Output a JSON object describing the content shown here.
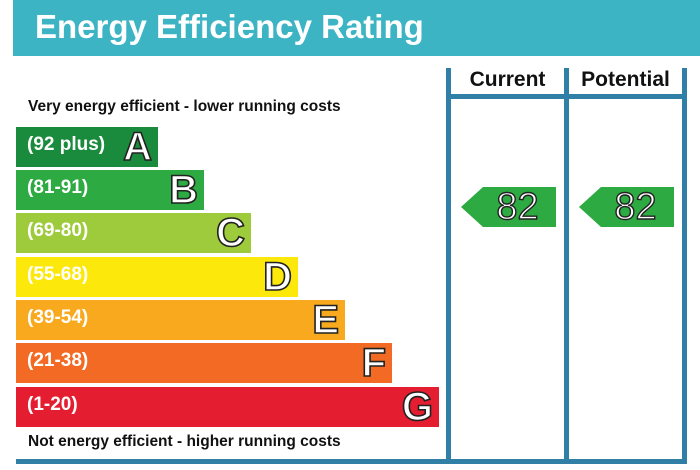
{
  "title": "Energy Efficiency Rating",
  "columns": {
    "current": "Current",
    "potential": "Potential"
  },
  "top_caption": "Very energy efficient - lower running costs",
  "bottom_caption": "Not energy efficient - higher running costs",
  "bands": [
    {
      "range": "(92 plus)",
      "letter": "A",
      "color": "#1a8b3c"
    },
    {
      "range": "(81-91)",
      "letter": "B",
      "color": "#2eaa43"
    },
    {
      "range": "(69-80)",
      "letter": "C",
      "color": "#9dcb3c"
    },
    {
      "range": "(55-68)",
      "letter": "D",
      "color": "#fde80c"
    },
    {
      "range": "(39-54)",
      "letter": "E",
      "color": "#f9a91e"
    },
    {
      "range": "(21-38)",
      "letter": "F",
      "color": "#f26a23"
    },
    {
      "range": "(1-20)",
      "letter": "G",
      "color": "#e41e30"
    }
  ],
  "ratings": {
    "current": {
      "value": "82",
      "color": "#2eaa43"
    },
    "potential": {
      "value": "82",
      "color": "#2eaa43"
    }
  }
}
